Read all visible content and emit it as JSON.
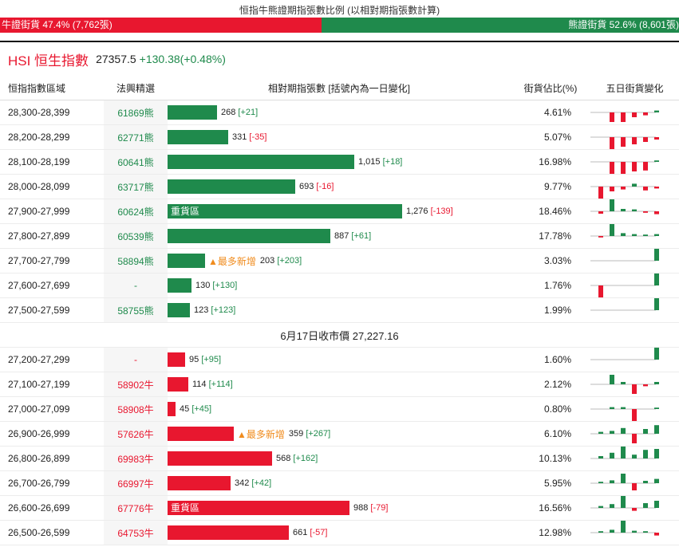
{
  "ratio": {
    "title": "恒指牛熊證期指張數比例 (以相對期指張數計算)",
    "bull_label": "牛證街貨 47.4% (7,762張)",
    "bear_label": "熊證街貨 52.6% (8,601張)",
    "bull_fraction": 0.474
  },
  "index": {
    "name": "HSI 恒生指數",
    "value": "27357.5",
    "change": "+130.38(+0.48%)"
  },
  "columns": {
    "range": "恒指指數區域",
    "code": "法興精選",
    "contracts": "相對期指張數 [括號內為一日變化]",
    "pct": "街貨佔比(%)",
    "trend": "五日街貨變化"
  },
  "colors": {
    "bear": "#1f8a4c",
    "bull": "#e8172f",
    "hot": "#f08c1e"
  },
  "close_label": "6月17日收市價 27,227.16",
  "bear_rows": [
    {
      "range": "28,300-28,399",
      "code": "61869熊",
      "count": 268,
      "count_label": "268",
      "change": "[+21]",
      "sign": "pos",
      "label": "",
      "hot": "",
      "pct": "4.61%",
      "spark": [
        0,
        -2,
        -2,
        -1,
        -0.6,
        0.4
      ]
    },
    {
      "range": "28,200-28,299",
      "code": "62771熊",
      "count": 331,
      "count_label": "331",
      "change": "[-35]",
      "sign": "neg",
      "label": "",
      "hot": "",
      "pct": "5.07%",
      "spark": [
        0,
        -2.5,
        -2,
        -1.5,
        -1,
        -0.5
      ]
    },
    {
      "range": "28,100-28,199",
      "code": "60641熊",
      "count": 1015,
      "count_label": "1,015",
      "change": "[+18]",
      "sign": "pos",
      "label": "",
      "hot": "",
      "pct": "16.98%",
      "spark": [
        0,
        -2.5,
        -2.5,
        -2,
        -1.8,
        0.3
      ]
    },
    {
      "range": "28,000-28,099",
      "code": "63717熊",
      "count": 693,
      "count_label": "693",
      "change": "[-16]",
      "sign": "neg",
      "label": "",
      "hot": "",
      "pct": "9.77%",
      "spark": [
        -2.5,
        -1,
        -0.6,
        0.6,
        -0.8,
        -0.4
      ]
    },
    {
      "range": "27,900-27,999",
      "code": "60624熊",
      "count": 1276,
      "count_label": "1,276",
      "change": "[-139]",
      "sign": "neg",
      "label": "重貨區",
      "hot": "",
      "pct": "18.46%",
      "spark": [
        -0.5,
        2.5,
        0.5,
        0.4,
        -0.3,
        -0.6
      ]
    },
    {
      "range": "27,800-27,899",
      "code": "60539熊",
      "count": 887,
      "count_label": "887",
      "change": "[+61]",
      "sign": "pos",
      "label": "",
      "hot": "",
      "pct": "17.78%",
      "spark": [
        -0.3,
        2.5,
        0.6,
        0.4,
        0.3,
        0.4
      ]
    },
    {
      "range": "27,700-27,799",
      "code": "58894熊",
      "count": 203,
      "count_label": "203",
      "change": "[+203]",
      "sign": "pos",
      "label": "",
      "hot": "▲最多新增",
      "pct": "3.03%",
      "spark": [
        0,
        0,
        0,
        0,
        0,
        2.5
      ]
    },
    {
      "range": "27,600-27,699",
      "code": "-",
      "count": 130,
      "count_label": "130",
      "change": "[+130]",
      "sign": "pos",
      "label": "",
      "hot": "",
      "pct": "1.76%",
      "spark": [
        -2.5,
        0,
        0,
        0,
        0,
        2.5
      ]
    },
    {
      "range": "27,500-27,599",
      "code": "58755熊",
      "count": 123,
      "count_label": "123",
      "change": "[+123]",
      "sign": "pos",
      "label": "",
      "hot": "",
      "pct": "1.99%",
      "spark": [
        0,
        0,
        0,
        0,
        0,
        2.5
      ]
    }
  ],
  "bull_rows": [
    {
      "range": "27,200-27,299",
      "code": "-",
      "count": 95,
      "count_label": "95",
      "change": "[+95]",
      "sign": "pos",
      "label": "",
      "hot": "",
      "pct": "1.60%",
      "spark": [
        0,
        0,
        0,
        0,
        0,
        2.5
      ]
    },
    {
      "range": "27,100-27,199",
      "code": "58902牛",
      "count": 114,
      "count_label": "114",
      "change": "[+114]",
      "sign": "pos",
      "label": "",
      "hot": "",
      "pct": "2.12%",
      "spark": [
        0,
        2,
        0.5,
        -2,
        -0.4,
        0.5
      ]
    },
    {
      "range": "27,000-27,099",
      "code": "58908牛",
      "count": 45,
      "count_label": "45",
      "change": "[+45]",
      "sign": "pos",
      "label": "",
      "hot": "",
      "pct": "0.80%",
      "spark": [
        0,
        0.4,
        0.4,
        -2.5,
        0,
        0.3
      ]
    },
    {
      "range": "26,900-26,999",
      "code": "57626牛",
      "count": 359,
      "count_label": "359",
      "change": "[+267]",
      "sign": "pos",
      "label": "",
      "hot": "▲最多新增",
      "pct": "6.10%",
      "spark": [
        0.4,
        0.6,
        1.2,
        -2,
        1,
        1.8
      ]
    },
    {
      "range": "26,800-26,899",
      "code": "69983牛",
      "count": 568,
      "count_label": "568",
      "change": "[+162]",
      "sign": "pos",
      "label": "",
      "hot": "",
      "pct": "10.13%",
      "spark": [
        0.5,
        1.2,
        2.5,
        0.8,
        1.8,
        2
      ]
    },
    {
      "range": "26,700-26,799",
      "code": "66997牛",
      "count": 342,
      "count_label": "342",
      "change": "[+42]",
      "sign": "pos",
      "label": "",
      "hot": "",
      "pct": "5.95%",
      "spark": [
        0.3,
        0.6,
        2,
        -1.5,
        0.5,
        0.9
      ]
    },
    {
      "range": "26,600-26,699",
      "code": "67776牛",
      "count": 988,
      "count_label": "988",
      "change": "[-79]",
      "sign": "neg",
      "label": "重貨區",
      "hot": "",
      "pct": "16.56%",
      "spark": [
        0.4,
        0.8,
        2.5,
        -0.6,
        1,
        1.5
      ]
    },
    {
      "range": "26,500-26,599",
      "code": "64753牛",
      "count": 661,
      "count_label": "661",
      "change": "[-57]",
      "sign": "neg",
      "label": "",
      "hot": "",
      "pct": "12.98%",
      "spark": [
        0.3,
        0.6,
        2.5,
        0.4,
        0.3,
        -0.6
      ]
    }
  ]
}
